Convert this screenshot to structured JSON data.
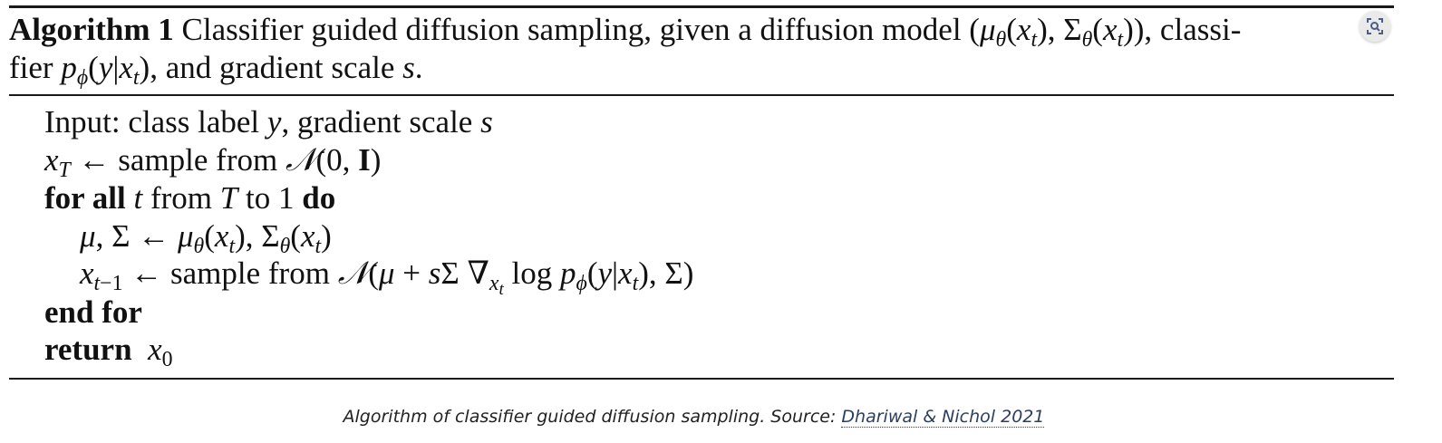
{
  "algorithm": {
    "header": {
      "number_label": "Algorithm 1",
      "line1_text": "Classifier guided diffusion sampling, given a diffusion model",
      "line1_math": "(μθ(xt), Σθ(xt)), classi-",
      "line2_text": "fier",
      "line2_math": "pϕ(y|xt)",
      "line2_rest": ", and gradient scale",
      "line2_var": "s",
      "line2_end": "."
    },
    "lines": {
      "input": "Input: class label y, gradient scale s",
      "init": "xT ← sample from 𝒩(0, I)",
      "loop_start": "for all t from T to 1 do",
      "update_params": "μ, Σ ← μθ(xt), Σθ(xt)",
      "sample_step": "xt−1 ← sample from 𝒩(μ + sΣ ∇xt log pϕ(y|xt), Σ)",
      "loop_end": "end for",
      "return": "return x0"
    }
  },
  "caption": {
    "text": "Algorithm of classifier guided diffusion sampling. Source: ",
    "link_text": "Dhariwal & Nichol 2021"
  },
  "overlay": {
    "icon": "image-search-icon"
  },
  "colors": {
    "text": "#111111",
    "caption": "#222222",
    "link": "#2c3e60"
  }
}
